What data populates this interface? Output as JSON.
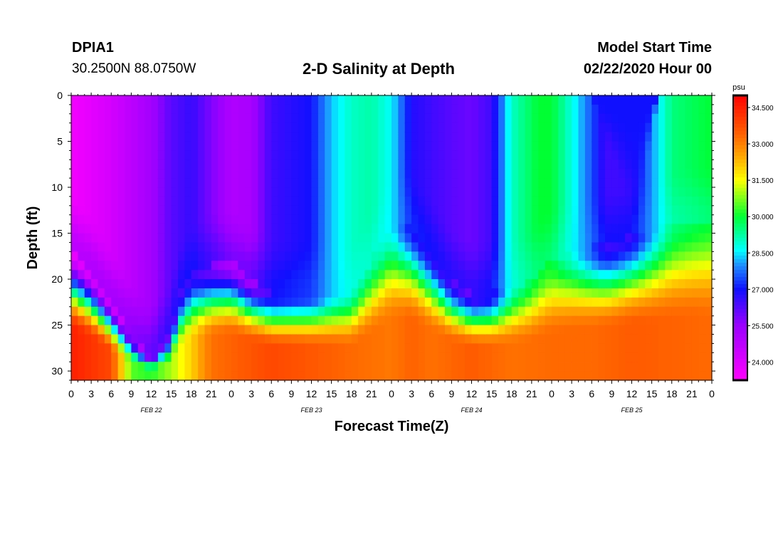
{
  "chart_data": {
    "type": "heatmap",
    "station": "DPIA1",
    "location": "30.2500N 88.0750W",
    "title": "2-D Salinity at Depth",
    "model_start_label": "Model Start Time",
    "model_start": "02/22/2020 Hour 00",
    "xlabel": "Forecast Time(Z)",
    "ylabel": "Depth (ft)",
    "xlim": [
      0,
      96
    ],
    "ylim": [
      0,
      31
    ],
    "x_tick_labels": [
      "0",
      "3",
      "6",
      "9",
      "12",
      "15",
      "18",
      "21",
      "0",
      "3",
      "6",
      "9",
      "12",
      "15",
      "18",
      "21",
      "0",
      "3",
      "6",
      "9",
      "12",
      "15",
      "18",
      "21",
      "0",
      "3",
      "6",
      "9",
      "12",
      "15",
      "18",
      "21",
      "0"
    ],
    "date_labels": [
      {
        "hour": 12,
        "text": "FEB 22"
      },
      {
        "hour": 36,
        "text": "FEB 23"
      },
      {
        "hour": 60,
        "text": "FEB 24"
      },
      {
        "hour": 84,
        "text": "FEB 25"
      }
    ],
    "y_ticks": [
      0,
      5,
      10,
      15,
      20,
      25,
      30
    ],
    "y_tick_labels": [
      "0",
      "5",
      "10",
      "15",
      "20",
      "25",
      "30"
    ],
    "colorbar": {
      "unit": "psu",
      "min": 23.25,
      "max": 35.0,
      "ticks": [
        34.5,
        33.0,
        31.5,
        30.0,
        28.5,
        27.0,
        25.5,
        24.0
      ],
      "tick_labels": [
        "34.500",
        "33.000",
        "31.500",
        "30.000",
        "28.500",
        "27.000",
        "25.500",
        "24.000"
      ],
      "palette": [
        [
          23.25,
          "#ff00ff"
        ],
        [
          25.5,
          "#9a00ff"
        ],
        [
          27.0,
          "#1010ff"
        ],
        [
          28.0,
          "#1e90ff"
        ],
        [
          28.6,
          "#00ffff"
        ],
        [
          30.0,
          "#00ff33"
        ],
        [
          31.5,
          "#ffff00"
        ],
        [
          32.5,
          "#ffa500"
        ],
        [
          33.5,
          "#ff5a00"
        ],
        [
          35.0,
          "#ff0000"
        ]
      ]
    },
    "surface_salinity": {
      "hours": [
        0,
        6,
        12,
        15,
        18,
        21,
        24,
        27,
        30,
        36,
        39,
        42,
        45,
        48,
        51,
        54,
        57,
        60,
        63,
        66,
        70,
        72,
        75,
        78,
        80,
        84,
        87,
        90,
        96
      ],
      "values": [
        23.5,
        24.2,
        25.3,
        26.2,
        26.6,
        25.8,
        25.0,
        25.2,
        26.5,
        27.0,
        28.3,
        29.0,
        29.2,
        28.6,
        26.8,
        26.5,
        26.2,
        26.0,
        26.5,
        29.0,
        30.0,
        30.0,
        28.8,
        27.5,
        26.5,
        26.5,
        28.0,
        29.5,
        30.0
      ]
    },
    "halocline_top_depth_ft": {
      "hours": [
        0,
        3,
        6,
        8,
        10,
        12,
        15,
        16,
        18,
        21,
        24,
        27,
        30,
        36,
        42,
        45,
        48,
        51,
        54,
        57,
        60,
        63,
        66,
        69,
        72,
        75,
        78,
        81,
        84,
        87,
        90,
        93,
        96
      ],
      "values": [
        16.5,
        19.0,
        22.5,
        25.0,
        27.0,
        28.5,
        26.0,
        22.0,
        19.5,
        18.5,
        18.0,
        20.0,
        21.5,
        21.5,
        21.5,
        18.0,
        14.0,
        14.0,
        17.0,
        20.0,
        21.5,
        21.5,
        21.0,
        20.0,
        18.0,
        17.0,
        16.5,
        16.0,
        15.0,
        14.5,
        14.0,
        13.5,
        13.5
      ]
    },
    "bottom_salinity": {
      "hours": [
        0,
        6,
        9,
        12,
        15,
        18,
        21,
        30,
        42,
        48,
        51,
        54,
        60,
        66,
        72,
        78,
        84,
        90,
        96
      ],
      "values": [
        34.5,
        33.8,
        30.5,
        30.2,
        31.0,
        32.0,
        33.2,
        33.8,
        33.3,
        33.1,
        33.4,
        33.2,
        33.5,
        33.2,
        33.3,
        33.3,
        33.5,
        33.4,
        33.3
      ]
    },
    "notch_column": {
      "hours": [
        78,
        80,
        82,
        84,
        86,
        88
      ],
      "surface_depth_ft": [
        0,
        5,
        9,
        15,
        9,
        0
      ],
      "value": 27.0
    }
  }
}
